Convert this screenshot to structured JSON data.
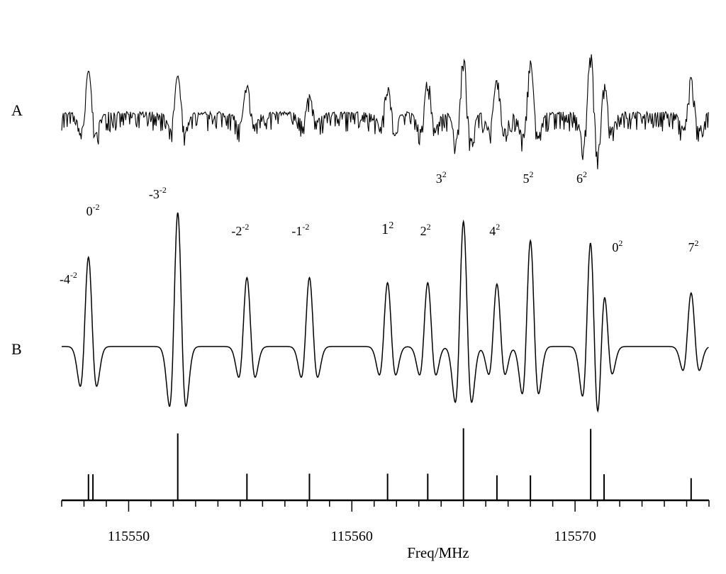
{
  "chart_data": {
    "type": "line",
    "xlabel": "Freq/MHz",
    "xlim": [
      115547,
      115576
    ],
    "x_ticks": [
      115550,
      115560,
      115570
    ],
    "x_tick_labels": [
      "115550",
      "115560",
      "115570"
    ],
    "minor_tick_step": 1,
    "panels": [
      {
        "id": "A",
        "label": "A",
        "kind": "observed second-derivative spectrum"
      },
      {
        "id": "B",
        "label": "B",
        "kind": "simulated second-derivative spectrum"
      }
    ],
    "series": [
      {
        "name": "A",
        "lines": [
          {
            "x": 115548.2,
            "intensity": 0.7
          },
          {
            "x": 115552.2,
            "intensity": 0.62
          },
          {
            "x": 115555.3,
            "intensity": 0.46
          },
          {
            "x": 115558.1,
            "intensity": 0.3
          },
          {
            "x": 115561.6,
            "intensity": 0.44
          },
          {
            "x": 115563.4,
            "intensity": 0.58
          },
          {
            "x": 115565.0,
            "intensity": 1.0
          },
          {
            "x": 115566.5,
            "intensity": 0.58
          },
          {
            "x": 115568.0,
            "intensity": 0.85
          },
          {
            "x": 115570.7,
            "intensity": 1.1
          },
          {
            "x": 115571.3,
            "intensity": 0.55
          },
          {
            "x": 115575.2,
            "intensity": 0.6
          }
        ]
      },
      {
        "name": "B",
        "lines": [
          {
            "x": 115548.2,
            "intensity": 0.7
          },
          {
            "x": 115552.2,
            "intensity": 1.05
          },
          {
            "x": 115555.3,
            "intensity": 0.54
          },
          {
            "x": 115558.1,
            "intensity": 0.54
          },
          {
            "x": 115561.6,
            "intensity": 0.5
          },
          {
            "x": 115563.4,
            "intensity": 0.5
          },
          {
            "x": 115565.0,
            "intensity": 0.98
          },
          {
            "x": 115566.5,
            "intensity": 0.49
          },
          {
            "x": 115568.0,
            "intensity": 0.83
          },
          {
            "x": 115570.7,
            "intensity": 0.87
          },
          {
            "x": 115571.3,
            "intensity": 0.48
          },
          {
            "x": 115575.2,
            "intensity": 0.42
          }
        ]
      }
    ],
    "stick_lines": [
      {
        "x": 115548.2,
        "intensity": 0.46
      },
      {
        "x": 115548.4,
        "intensity": 0.46
      },
      {
        "x": 115552.2,
        "intensity": 1.18
      },
      {
        "x": 115555.3,
        "intensity": 0.47
      },
      {
        "x": 115558.1,
        "intensity": 0.47
      },
      {
        "x": 115561.6,
        "intensity": 0.47
      },
      {
        "x": 115563.4,
        "intensity": 0.47
      },
      {
        "x": 115565.0,
        "intensity": 1.27
      },
      {
        "x": 115566.5,
        "intensity": 0.44
      },
      {
        "x": 115568.0,
        "intensity": 0.44
      },
      {
        "x": 115570.7,
        "intensity": 1.26
      },
      {
        "x": 115571.3,
        "intensity": 0.46
      },
      {
        "x": 115575.2,
        "intensity": 0.39
      }
    ],
    "peak_labels": [
      {
        "base": "-4",
        "sup": "-2",
        "x": 115547.3
      },
      {
        "base": "0",
        "sup": "-2",
        "x": 115548.4
      },
      {
        "base": "-3",
        "sup": "-2",
        "x": 115551.3
      },
      {
        "base": "-2",
        "sup": "-2",
        "x": 115555.0
      },
      {
        "base": "-1",
        "sup": "-2",
        "x": 115557.7
      },
      {
        "base": "1",
        "sup": "2",
        "x": 115561.6
      },
      {
        "base": "2",
        "sup": "2",
        "x": 115563.3
      },
      {
        "base": "3",
        "sup": "2",
        "x": 115564.0
      },
      {
        "base": "4",
        "sup": "2",
        "x": 115566.4
      },
      {
        "base": "5",
        "sup": "2",
        "x": 115567.9
      },
      {
        "base": "6",
        "sup": "2",
        "x": 115570.3
      },
      {
        "base": "0",
        "sup": "2",
        "x": 115571.9
      },
      {
        "base": "7",
        "sup": "2",
        "x": 115575.3
      }
    ]
  }
}
